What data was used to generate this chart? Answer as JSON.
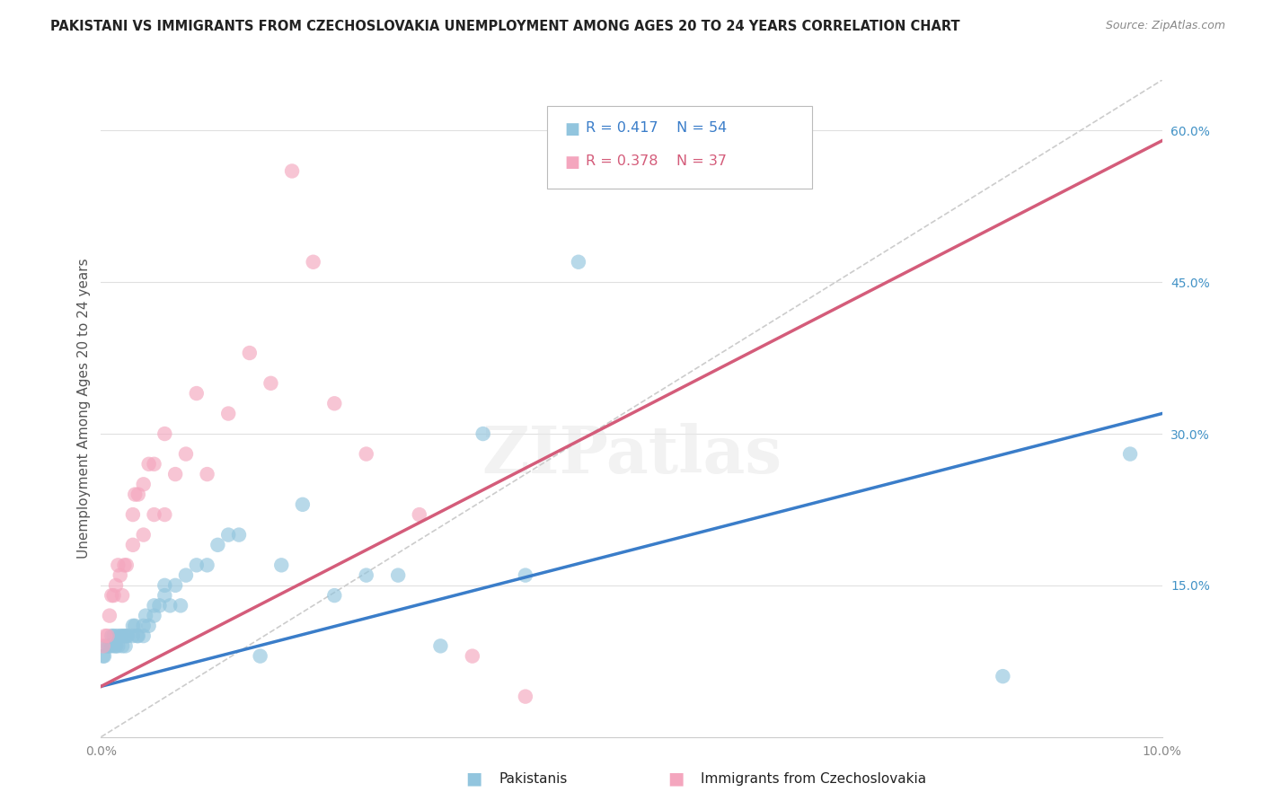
{
  "title": "PAKISTANI VS IMMIGRANTS FROM CZECHOSLOVAKIA UNEMPLOYMENT AMONG AGES 20 TO 24 YEARS CORRELATION CHART",
  "source": "Source: ZipAtlas.com",
  "ylabel": "Unemployment Among Ages 20 to 24 years",
  "xlim": [
    0.0,
    0.1
  ],
  "ylim": [
    0.0,
    0.65
  ],
  "r_pak": 0.417,
  "n_pak": 54,
  "r_czech": 0.378,
  "n_czech": 37,
  "pakistani_x": [
    0.0002,
    0.0003,
    0.0005,
    0.0007,
    0.0008,
    0.001,
    0.001,
    0.0012,
    0.0013,
    0.0014,
    0.0015,
    0.0016,
    0.0018,
    0.002,
    0.002,
    0.0022,
    0.0023,
    0.0024,
    0.0025,
    0.003,
    0.003,
    0.0032,
    0.0034,
    0.0035,
    0.004,
    0.004,
    0.0042,
    0.0045,
    0.005,
    0.005,
    0.0055,
    0.006,
    0.006,
    0.0065,
    0.007,
    0.0075,
    0.008,
    0.009,
    0.01,
    0.011,
    0.012,
    0.013,
    0.015,
    0.017,
    0.019,
    0.022,
    0.025,
    0.028,
    0.032,
    0.036,
    0.04,
    0.045,
    0.085,
    0.097
  ],
  "pakistani_y": [
    0.08,
    0.08,
    0.09,
    0.09,
    0.09,
    0.09,
    0.1,
    0.1,
    0.09,
    0.09,
    0.1,
    0.09,
    0.1,
    0.09,
    0.1,
    0.1,
    0.09,
    0.1,
    0.1,
    0.1,
    0.11,
    0.11,
    0.1,
    0.1,
    0.1,
    0.11,
    0.12,
    0.11,
    0.12,
    0.13,
    0.13,
    0.14,
    0.15,
    0.13,
    0.15,
    0.13,
    0.16,
    0.17,
    0.17,
    0.19,
    0.2,
    0.2,
    0.08,
    0.17,
    0.23,
    0.14,
    0.16,
    0.16,
    0.09,
    0.3,
    0.16,
    0.47,
    0.06,
    0.28
  ],
  "czech_x": [
    0.0002,
    0.0004,
    0.0006,
    0.0008,
    0.001,
    0.0012,
    0.0014,
    0.0016,
    0.0018,
    0.002,
    0.0022,
    0.0024,
    0.003,
    0.003,
    0.0032,
    0.0035,
    0.004,
    0.004,
    0.0045,
    0.005,
    0.005,
    0.006,
    0.006,
    0.007,
    0.008,
    0.009,
    0.01,
    0.012,
    0.014,
    0.016,
    0.018,
    0.02,
    0.022,
    0.025,
    0.03,
    0.035,
    0.04
  ],
  "czech_y": [
    0.09,
    0.1,
    0.1,
    0.12,
    0.14,
    0.14,
    0.15,
    0.17,
    0.16,
    0.14,
    0.17,
    0.17,
    0.19,
    0.22,
    0.24,
    0.24,
    0.2,
    0.25,
    0.27,
    0.22,
    0.27,
    0.22,
    0.3,
    0.26,
    0.28,
    0.34,
    0.26,
    0.32,
    0.38,
    0.35,
    0.56,
    0.47,
    0.33,
    0.28,
    0.22,
    0.08,
    0.04
  ],
  "watermark": "ZIPatlas",
  "bg": "#ffffff",
  "title_color": "#222222",
  "axis_label_color": "#555555",
  "grid_color": "#e0e0e0",
  "blue_scatter": "#92c5de",
  "pink_scatter": "#f4a6be",
  "blue_line": "#3a7dc9",
  "pink_line": "#d45c7a",
  "diag_color": "#cccccc",
  "tick_color_right": "#4292c6",
  "tick_color_x": "#888888"
}
